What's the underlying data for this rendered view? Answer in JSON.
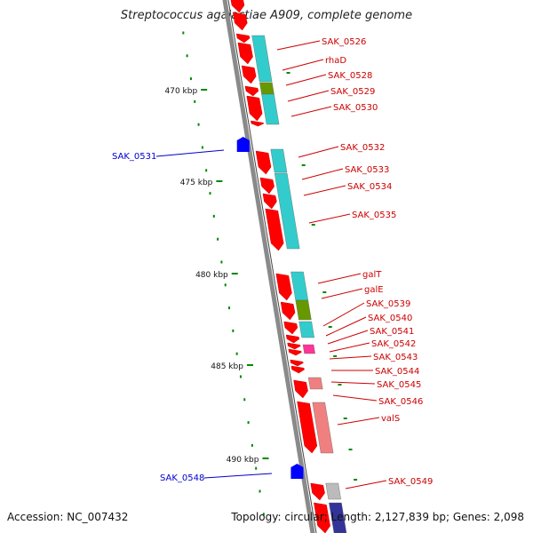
{
  "title": "Streptococcus agalactiae A909, complete genome",
  "footer": {
    "accession": "Accession: NC_007432",
    "summary": "Topology: circular; Length: 2,127,839 bp; Genes: 2,098"
  },
  "colors": {
    "backbone": "#8a8a8a",
    "gene_red": "#ff0000",
    "cds_cyan": "#33cccc",
    "cds_green": "#669900",
    "cds_pink": "#ff3399",
    "cds_salmon": "#f08080",
    "cds_gray": "#bbbbbb",
    "cds_navy": "#333399",
    "label_red": "#cc0000",
    "label_blue": "#0000cc",
    "tick_green": "#008800",
    "blue_feature": "#0000ff"
  },
  "scale_labels": [
    {
      "text": "470 kbp",
      "kbp": 470
    },
    {
      "text": "475 kbp",
      "kbp": 475
    },
    {
      "text": "480 kbp",
      "kbp": 480
    },
    {
      "text": "485 kbp",
      "kbp": 485
    },
    {
      "text": "490 kbp",
      "kbp": 490
    }
  ],
  "genes_right": [
    {
      "label": "SAK_0526"
    },
    {
      "label": "rhaD"
    },
    {
      "label": "SAK_0528"
    },
    {
      "label": "SAK_0529"
    },
    {
      "label": "SAK_0530"
    },
    {
      "label": "SAK_0532"
    },
    {
      "label": "SAK_0533"
    },
    {
      "label": "SAK_0534"
    },
    {
      "label": "SAK_0535"
    },
    {
      "label": "galT"
    },
    {
      "label": "galE"
    },
    {
      "label": "SAK_0539"
    },
    {
      "label": "SAK_0540"
    },
    {
      "label": "SAK_0541"
    },
    {
      "label": "SAK_0542"
    },
    {
      "label": "SAK_0543"
    },
    {
      "label": "SAK_0544"
    },
    {
      "label": "SAK_0545"
    },
    {
      "label": "SAK_0546"
    },
    {
      "label": "valS"
    },
    {
      "label": "SAK_0549"
    }
  ],
  "genes_left": [
    {
      "label": "SAK_0531"
    },
    {
      "label": "SAK_0548"
    }
  ]
}
